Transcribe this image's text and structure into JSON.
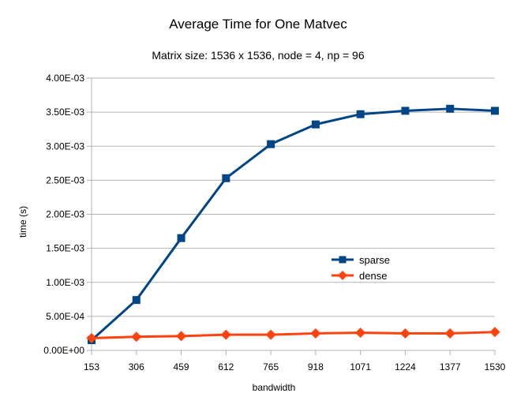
{
  "chart_data": {
    "type": "line",
    "title": "Average Time for One Matvec",
    "subtitle": "Matrix size: 1536 x 1536, node = 4, np = 96",
    "xlabel": "bandwidth",
    "ylabel": "time (s)",
    "categories": [
      "153",
      "306",
      "459",
      "612",
      "765",
      "918",
      "1071",
      "1224",
      "1377",
      "1530"
    ],
    "ylim": [
      0,
      0.004
    ],
    "y_ticks": [
      {
        "value": 0,
        "label": "0.00E+00"
      },
      {
        "value": 0.0005,
        "label": "5.00E-04"
      },
      {
        "value": 0.001,
        "label": "1.00E-03"
      },
      {
        "value": 0.0015,
        "label": "1.50E-03"
      },
      {
        "value": 0.002,
        "label": "2.00E-03"
      },
      {
        "value": 0.0025,
        "label": "2.50E-03"
      },
      {
        "value": 0.003,
        "label": "3.00E-03"
      },
      {
        "value": 0.0035,
        "label": "3.50E-03"
      },
      {
        "value": 0.004,
        "label": "4.00E-03"
      }
    ],
    "grid": true,
    "legend_position": "right-middle",
    "series": [
      {
        "name": "sparse",
        "color": "#004586",
        "marker": "square",
        "values": [
          0.00015,
          0.00074,
          0.00165,
          0.00253,
          0.00303,
          0.00332,
          0.00347,
          0.00352,
          0.00355,
          0.00352
        ]
      },
      {
        "name": "dense",
        "color": "#ff420e",
        "marker": "diamond",
        "values": [
          0.00018,
          0.0002,
          0.00021,
          0.00023,
          0.00023,
          0.00025,
          0.00026,
          0.00025,
          0.00025,
          0.00027
        ]
      }
    ]
  }
}
